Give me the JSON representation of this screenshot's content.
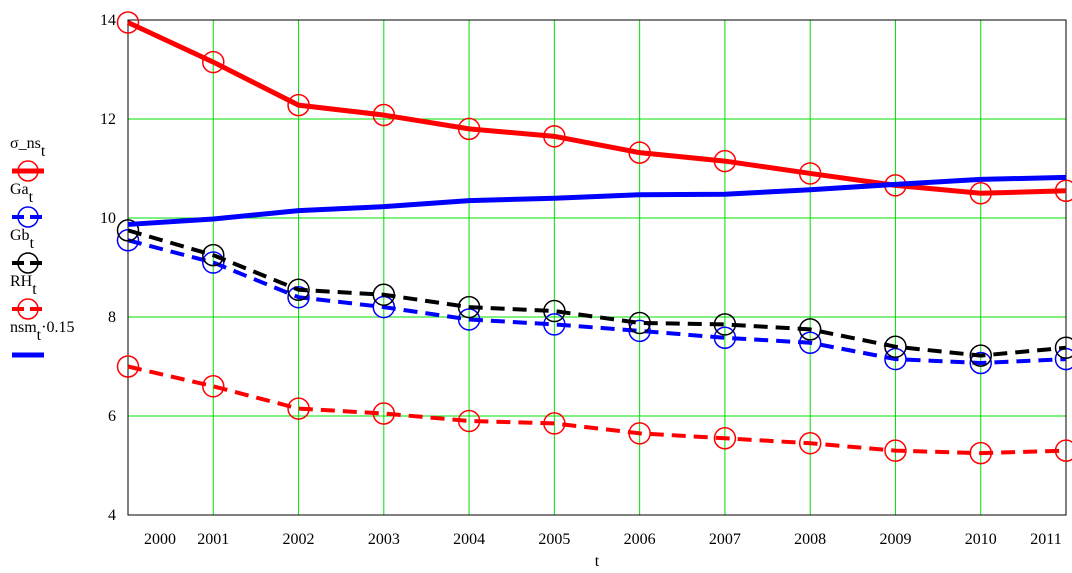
{
  "chart_data": {
    "type": "line",
    "x_label": "t",
    "x": [
      2000,
      2001,
      2002,
      2003,
      2004,
      2005,
      2006,
      2007,
      2008,
      2009,
      2010,
      2011
    ],
    "xlim": [
      2000,
      2011
    ],
    "xticks": [
      2000,
      2001,
      2002,
      2003,
      2004,
      2005,
      2006,
      2007,
      2008,
      2009,
      2010,
      2011
    ],
    "ylim": [
      4,
      14
    ],
    "yticks": [
      4,
      6,
      8,
      10,
      12,
      14
    ],
    "grid": true,
    "grid_color": "#00e000",
    "legend": "left",
    "series": [
      {
        "name": "σ_ns",
        "subscript": "t",
        "color": "#ff0000",
        "dashed": false,
        "markers": true,
        "values": [
          13.95,
          13.15,
          12.28,
          12.08,
          11.8,
          11.65,
          11.32,
          11.15,
          10.9,
          10.66,
          10.5,
          10.55
        ]
      },
      {
        "name": "Ga",
        "subscript": "t",
        "color": "#0000ff",
        "dashed": true,
        "markers": true,
        "values": [
          9.55,
          9.1,
          8.4,
          8.2,
          7.95,
          7.85,
          7.72,
          7.58,
          7.48,
          7.15,
          7.07,
          7.15
        ]
      },
      {
        "name": "Gb",
        "subscript": "t",
        "color": "#000000",
        "dashed": true,
        "markers": true,
        "values": [
          9.75,
          9.25,
          8.55,
          8.45,
          8.2,
          8.12,
          7.88,
          7.85,
          7.75,
          7.4,
          7.22,
          7.38
        ]
      },
      {
        "name": "RH",
        "subscript": "t",
        "color": "#ff0000",
        "dashed": true,
        "markers": true,
        "values": [
          7.0,
          6.6,
          6.15,
          6.05,
          5.9,
          5.85,
          5.65,
          5.55,
          5.45,
          5.3,
          5.25,
          5.3
        ]
      },
      {
        "name": "nsm",
        "subscript": "t",
        "suffix": "·0.15",
        "color": "#0000ff",
        "dashed": false,
        "markers": false,
        "values": [
          9.87,
          9.98,
          10.15,
          10.23,
          10.35,
          10.4,
          10.47,
          10.48,
          10.57,
          10.68,
          10.78,
          10.82
        ]
      }
    ]
  }
}
